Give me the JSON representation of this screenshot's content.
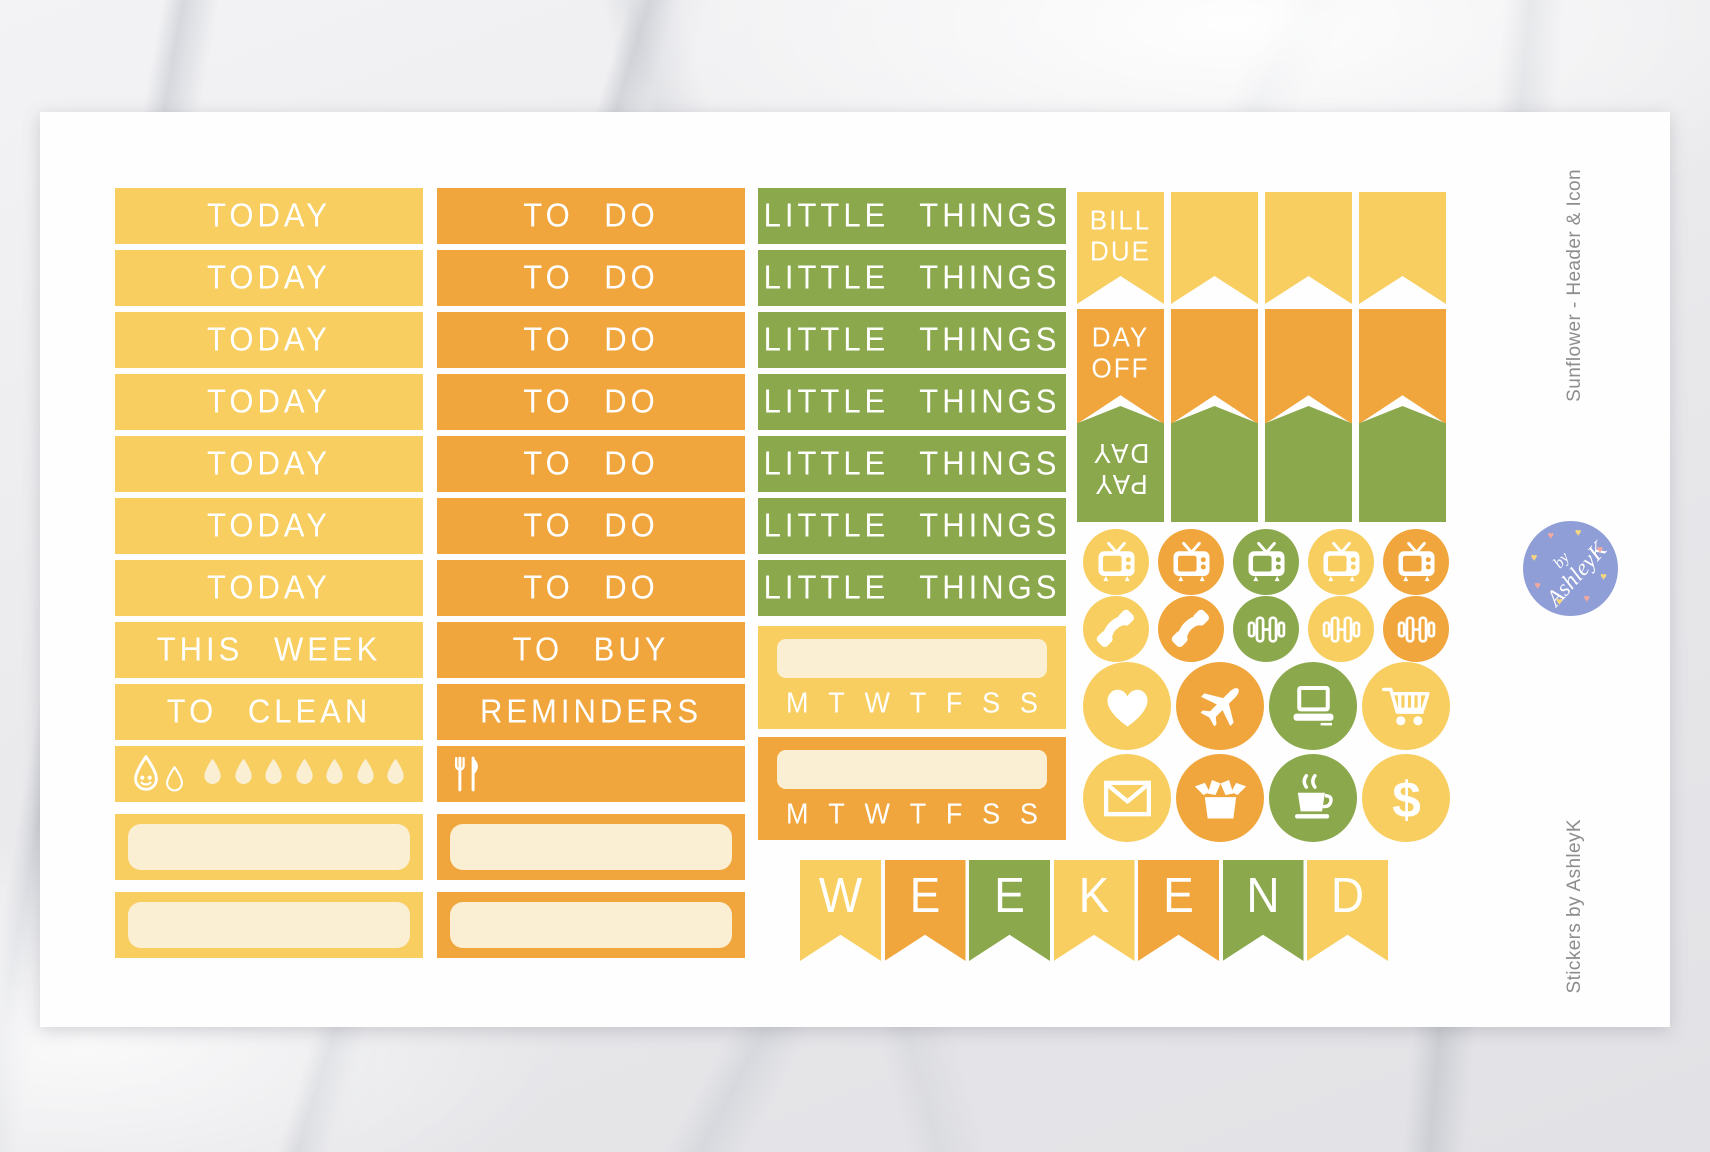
{
  "side": {
    "title": "Sunflower - Header & Icon",
    "credit": "Stickers by AshleyK"
  },
  "logo": {
    "by": "by",
    "name": "AshleyK"
  },
  "palette": {
    "yellow": "#F7CE5F",
    "orange": "#F0A63C",
    "green": "#8BA84C",
    "cream": "#FAEFD2",
    "logo_blue": "#8F9ED6"
  },
  "columns": [
    {
      "id": "today",
      "color": "yellow",
      "headers": [
        "TODAY",
        "TODAY",
        "TODAY",
        "TODAY",
        "TODAY",
        "TODAY",
        "TODAY",
        "THIS WEEK",
        "TO CLEAN"
      ],
      "tracker": "hydrate",
      "drop_count": 7,
      "blank_boxes": 2
    },
    {
      "id": "todo",
      "color": "orange",
      "headers": [
        "TO DO",
        "TO DO",
        "TO DO",
        "TO DO",
        "TO DO",
        "TO DO",
        "TO DO",
        "TO BUY",
        "REMINDERS"
      ],
      "tracker": "meal",
      "blank_boxes": 2
    },
    {
      "id": "little-things",
      "color": "green",
      "headers": [
        "LITTLE THINGS",
        "LITTLE THINGS",
        "LITTLE THINGS",
        "LITTLE THINGS",
        "LITTLE THINGS",
        "LITTLE THINGS",
        "LITTLE THINGS"
      ],
      "week_trackers": [
        {
          "color": "yellow",
          "days": [
            "M",
            "T",
            "W",
            "T",
            "F",
            "S",
            "S"
          ]
        },
        {
          "color": "orange",
          "days": [
            "M",
            "T",
            "W",
            "T",
            "F",
            "S",
            "S"
          ]
        }
      ]
    }
  ],
  "flags": [
    {
      "label": "BILL DUE",
      "lines": [
        "BILL",
        "DUE"
      ],
      "color": "yellow",
      "count": 4,
      "shape": "swallowtail"
    },
    {
      "label": "DAY OFF",
      "lines": [
        "DAY",
        "OFF"
      ],
      "color": "orange",
      "count": 4,
      "shape": "swallowtail"
    },
    {
      "label": "PAY DAY",
      "lines": [
        "PAY",
        "DAY"
      ],
      "color": "green",
      "count": 4,
      "shape": "point-up",
      "upside_down": true
    }
  ],
  "icon_grid": {
    "small_rows": [
      [
        {
          "name": "tv",
          "color": "yellow"
        },
        {
          "name": "tv",
          "color": "orange"
        },
        {
          "name": "tv",
          "color": "green"
        },
        {
          "name": "tv",
          "color": "yellow"
        },
        {
          "name": "tv",
          "color": "orange"
        }
      ],
      [
        {
          "name": "phone",
          "color": "yellow"
        },
        {
          "name": "phone",
          "color": "orange"
        },
        {
          "name": "dumbbell",
          "color": "green"
        },
        {
          "name": "dumbbell",
          "color": "yellow"
        },
        {
          "name": "dumbbell",
          "color": "orange"
        }
      ]
    ],
    "large_rows": [
      [
        {
          "name": "heart",
          "color": "yellow"
        },
        {
          "name": "plane",
          "color": "orange"
        },
        {
          "name": "laptop",
          "color": "green"
        },
        {
          "name": "cart",
          "color": "yellow"
        }
      ],
      [
        {
          "name": "envelope",
          "color": "yellow"
        },
        {
          "name": "box",
          "color": "orange"
        },
        {
          "name": "coffee",
          "color": "green"
        },
        {
          "name": "dollar",
          "color": "yellow"
        }
      ]
    ]
  },
  "weekend": {
    "letters": [
      {
        "ch": "W",
        "color": "yellow"
      },
      {
        "ch": "E",
        "color": "orange"
      },
      {
        "ch": "E",
        "color": "green"
      },
      {
        "ch": "K",
        "color": "yellow"
      },
      {
        "ch": "E",
        "color": "orange"
      },
      {
        "ch": "N",
        "color": "green"
      },
      {
        "ch": "D",
        "color": "yellow"
      }
    ]
  }
}
